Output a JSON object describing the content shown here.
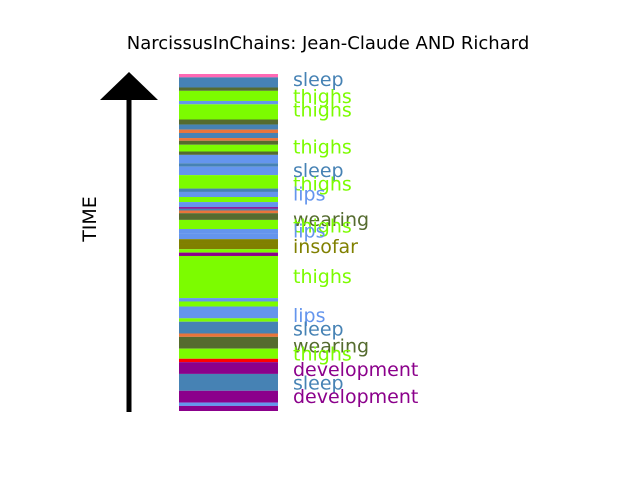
{
  "chart_data": {
    "type": "bar",
    "title": "NarcissusInChains: Jean-Claude AND Richard",
    "ylabel": "TIME",
    "colors": {
      "sleep": "#4682b4",
      "thighs": "#7cfc00",
      "lips": "#6495ed",
      "wearing": "#556b2f",
      "insofar": "#808000",
      "development": "#8b008b",
      "pink": "#ff69b4",
      "orange": "#e9743a",
      "red": "#ff0000"
    },
    "bands": [
      {
        "t0": 0.0,
        "t1": 0.01,
        "c": "pink"
      },
      {
        "t0": 0.01,
        "t1": 0.04,
        "c": "sleep"
      },
      {
        "t0": 0.04,
        "t1": 0.05,
        "c": "wearing"
      },
      {
        "t0": 0.05,
        "t1": 0.08,
        "c": "thighs"
      },
      {
        "t0": 0.08,
        "t1": 0.09,
        "c": "lips"
      },
      {
        "t0": 0.09,
        "t1": 0.135,
        "c": "thighs"
      },
      {
        "t0": 0.135,
        "t1": 0.15,
        "c": "wearing"
      },
      {
        "t0": 0.15,
        "t1": 0.165,
        "c": "sleep"
      },
      {
        "t0": 0.165,
        "t1": 0.175,
        "c": "orange"
      },
      {
        "t0": 0.175,
        "t1": 0.19,
        "c": "sleep"
      },
      {
        "t0": 0.19,
        "t1": 0.198,
        "c": "orange"
      },
      {
        "t0": 0.198,
        "t1": 0.21,
        "c": "wearing"
      },
      {
        "t0": 0.21,
        "t1": 0.23,
        "c": "thighs"
      },
      {
        "t0": 0.23,
        "t1": 0.24,
        "c": "wearing"
      },
      {
        "t0": 0.24,
        "t1": 0.265,
        "c": "lips"
      },
      {
        "t0": 0.265,
        "t1": 0.275,
        "c": "sleep"
      },
      {
        "t0": 0.275,
        "t1": 0.3,
        "c": "lips"
      },
      {
        "t0": 0.3,
        "t1": 0.34,
        "c": "thighs"
      },
      {
        "t0": 0.34,
        "t1": 0.35,
        "c": "sleep"
      },
      {
        "t0": 0.35,
        "t1": 0.365,
        "c": "lips"
      },
      {
        "t0": 0.365,
        "t1": 0.38,
        "c": "thighs"
      },
      {
        "t0": 0.38,
        "t1": 0.395,
        "c": "lips"
      },
      {
        "t0": 0.395,
        "t1": 0.4,
        "c": "development"
      },
      {
        "t0": 0.4,
        "t1": 0.405,
        "c": "sleep"
      },
      {
        "t0": 0.405,
        "t1": 0.413,
        "c": "orange"
      },
      {
        "t0": 0.413,
        "t1": 0.433,
        "c": "wearing"
      },
      {
        "t0": 0.433,
        "t1": 0.46,
        "c": "thighs"
      },
      {
        "t0": 0.46,
        "t1": 0.473,
        "c": "lips"
      },
      {
        "t0": 0.473,
        "t1": 0.49,
        "c": "lips"
      },
      {
        "t0": 0.49,
        "t1": 0.503,
        "c": "insofar"
      },
      {
        "t0": 0.503,
        "t1": 0.52,
        "c": "insofar"
      },
      {
        "t0": 0.52,
        "t1": 0.53,
        "c": "thighs"
      },
      {
        "t0": 0.53,
        "t1": 0.54,
        "c": "development"
      },
      {
        "t0": 0.54,
        "t1": 0.665,
        "c": "thighs"
      },
      {
        "t0": 0.665,
        "t1": 0.675,
        "c": "lips"
      },
      {
        "t0": 0.675,
        "t1": 0.69,
        "c": "thighs"
      },
      {
        "t0": 0.69,
        "t1": 0.725,
        "c": "lips"
      },
      {
        "t0": 0.725,
        "t1": 0.735,
        "c": "thighs"
      },
      {
        "t0": 0.735,
        "t1": 0.77,
        "c": "sleep"
      },
      {
        "t0": 0.77,
        "t1": 0.78,
        "c": "orange"
      },
      {
        "t0": 0.78,
        "t1": 0.815,
        "c": "wearing"
      },
      {
        "t0": 0.815,
        "t1": 0.845,
        "c": "thighs"
      },
      {
        "t0": 0.845,
        "t1": 0.855,
        "c": "red"
      },
      {
        "t0": 0.855,
        "t1": 0.89,
        "c": "development"
      },
      {
        "t0": 0.89,
        "t1": 0.94,
        "c": "sleep"
      },
      {
        "t0": 0.94,
        "t1": 0.975,
        "c": "development"
      },
      {
        "t0": 0.975,
        "t1": 0.985,
        "c": "lips"
      },
      {
        "t0": 0.985,
        "t1": 1.0,
        "c": "development"
      }
    ],
    "labels": [
      {
        "text": "sleep",
        "t": 0.015,
        "c": "sleep"
      },
      {
        "text": "thighs",
        "t": 0.065,
        "c": "thighs"
      },
      {
        "text": "thighs",
        "t": 0.105,
        "c": "thighs"
      },
      {
        "text": "thighs",
        "t": 0.215,
        "c": "thighs"
      },
      {
        "text": "sleep",
        "t": 0.285,
        "c": "sleep"
      },
      {
        "text": "thighs",
        "t": 0.325,
        "c": "thighs"
      },
      {
        "text": "lips",
        "t": 0.355,
        "c": "lips"
      },
      {
        "text": "wearing",
        "t": 0.43,
        "c": "wearing"
      },
      {
        "text": "thighs",
        "t": 0.45,
        "c": "thighs"
      },
      {
        "text": "lips",
        "t": 0.465,
        "c": "lips"
      },
      {
        "text": "insofar",
        "t": 0.51,
        "c": "insofar"
      },
      {
        "text": "thighs",
        "t": 0.6,
        "c": "thighs"
      },
      {
        "text": "lips",
        "t": 0.715,
        "c": "lips"
      },
      {
        "text": "sleep",
        "t": 0.755,
        "c": "sleep"
      },
      {
        "text": "wearing",
        "t": 0.805,
        "c": "wearing"
      },
      {
        "text": "thighs",
        "t": 0.83,
        "c": "thighs"
      },
      {
        "text": "development",
        "t": 0.875,
        "c": "development"
      },
      {
        "text": "sleep",
        "t": 0.915,
        "c": "sleep"
      },
      {
        "text": "development",
        "t": 0.955,
        "c": "development"
      }
    ]
  }
}
